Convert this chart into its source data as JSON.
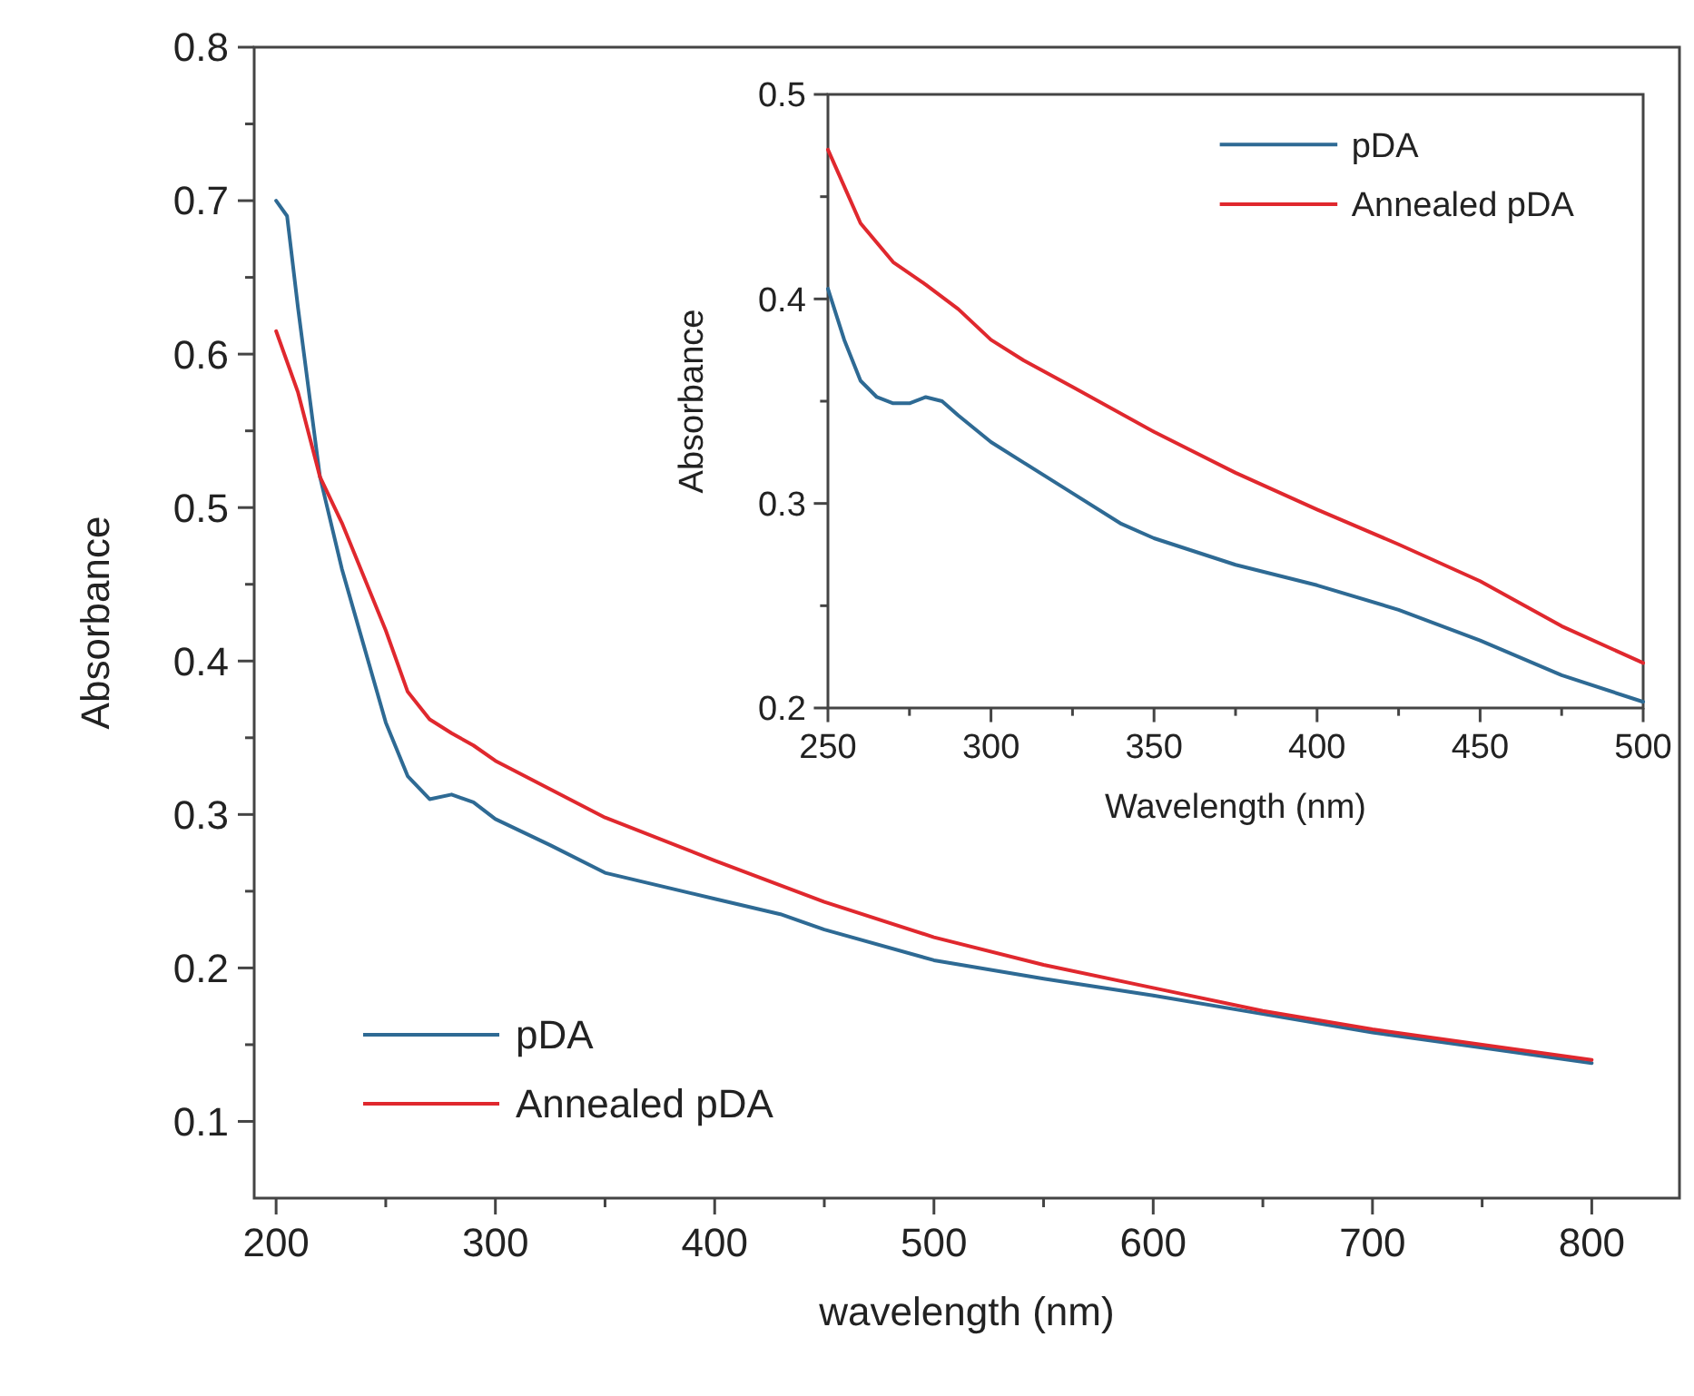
{
  "chart_data": [
    {
      "type": "line",
      "xlabel": "wavelength (nm)",
      "ylabel": "Absorbance",
      "xlim": [
        190,
        840
      ],
      "ylim": [
        0.05,
        0.8
      ],
      "xticks": [
        200,
        {
          "value": 250,
          "label": null
        },
        300,
        {
          "value": 350,
          "label": null
        },
        400,
        {
          "value": 450,
          "label": null
        },
        500,
        {
          "value": 550,
          "label": null
        },
        600,
        {
          "value": 650,
          "label": null
        },
        700,
        {
          "value": 750,
          "label": null
        },
        800
      ],
      "yticks": [
        0.1,
        {
          "value": 0.15,
          "label": null
        },
        0.2,
        {
          "value": 0.25,
          "label": null
        },
        0.3,
        {
          "value": 0.35,
          "label": null
        },
        0.4,
        {
          "value": 0.45,
          "label": null
        },
        0.5,
        {
          "value": 0.55,
          "label": null
        },
        0.6,
        {
          "value": 0.65,
          "label": null
        },
        0.7,
        {
          "value": 0.75,
          "label": null
        },
        0.8
      ],
      "legend": "bottom left",
      "grid": false,
      "marker": "none",
      "line_style": "solid",
      "series": [
        {
          "name": "pDA",
          "color": "#2e6a94",
          "x": [
            200,
            205,
            210,
            220,
            230,
            240,
            250,
            260,
            270,
            280,
            290,
            300,
            325,
            350,
            400,
            430,
            450,
            500,
            550,
            600,
            650,
            700,
            750,
            800
          ],
          "values": [
            0.7,
            0.69,
            0.63,
            0.52,
            0.46,
            0.41,
            0.36,
            0.325,
            0.31,
            0.313,
            0.308,
            0.297,
            0.28,
            0.262,
            0.245,
            0.235,
            0.225,
            0.205,
            0.193,
            0.182,
            0.17,
            0.158,
            0.148,
            0.138
          ]
        },
        {
          "name": "Annealed pDA",
          "color": "#e0282e",
          "x": [
            200,
            210,
            220,
            230,
            250,
            260,
            270,
            280,
            290,
            300,
            350,
            400,
            450,
            500,
            550,
            600,
            650,
            700,
            750,
            800
          ],
          "values": [
            0.615,
            0.575,
            0.52,
            0.49,
            0.42,
            0.38,
            0.362,
            0.353,
            0.345,
            0.335,
            0.298,
            0.27,
            0.243,
            0.22,
            0.202,
            0.187,
            0.172,
            0.16,
            0.15,
            0.14
          ]
        }
      ]
    },
    {
      "type": "line",
      "xlabel": "Wavelength (nm)",
      "ylabel": "Absorbance",
      "xlim": [
        250,
        500
      ],
      "ylim": [
        0.2,
        0.5
      ],
      "xticks": [
        250,
        {
          "value": 275,
          "label": null
        },
        300,
        {
          "value": 325,
          "label": null
        },
        350,
        {
          "value": 375,
          "label": null
        },
        400,
        {
          "value": 425,
          "label": null
        },
        450,
        {
          "value": 475,
          "label": null
        },
        500
      ],
      "yticks": [
        0.2,
        {
          "value": 0.25,
          "label": null
        },
        0.3,
        {
          "value": 0.35,
          "label": null
        },
        0.4,
        {
          "value": 0.45,
          "label": null
        },
        0.5
      ],
      "legend": "top right",
      "grid": false,
      "marker": "none",
      "line_style": "solid",
      "series": [
        {
          "name": "pDA",
          "color": "#2e6a94",
          "x": [
            250,
            255,
            260,
            265,
            270,
            275,
            280,
            285,
            290,
            300,
            310,
            325,
            340,
            350,
            375,
            400,
            425,
            450,
            475,
            500
          ],
          "values": [
            0.405,
            0.38,
            0.36,
            0.352,
            0.349,
            0.349,
            0.352,
            0.35,
            0.343,
            0.33,
            0.32,
            0.305,
            0.29,
            0.283,
            0.27,
            0.26,
            0.248,
            0.233,
            0.216,
            0.203
          ]
        },
        {
          "name": "Annealed pDA",
          "color": "#e0282e",
          "x": [
            250,
            255,
            260,
            270,
            280,
            290,
            300,
            310,
            325,
            350,
            375,
            400,
            425,
            450,
            475,
            500
          ],
          "values": [
            0.473,
            0.455,
            0.437,
            0.418,
            0.407,
            0.395,
            0.38,
            0.37,
            0.357,
            0.335,
            0.315,
            0.297,
            0.28,
            0.262,
            0.24,
            0.222
          ]
        }
      ]
    }
  ]
}
